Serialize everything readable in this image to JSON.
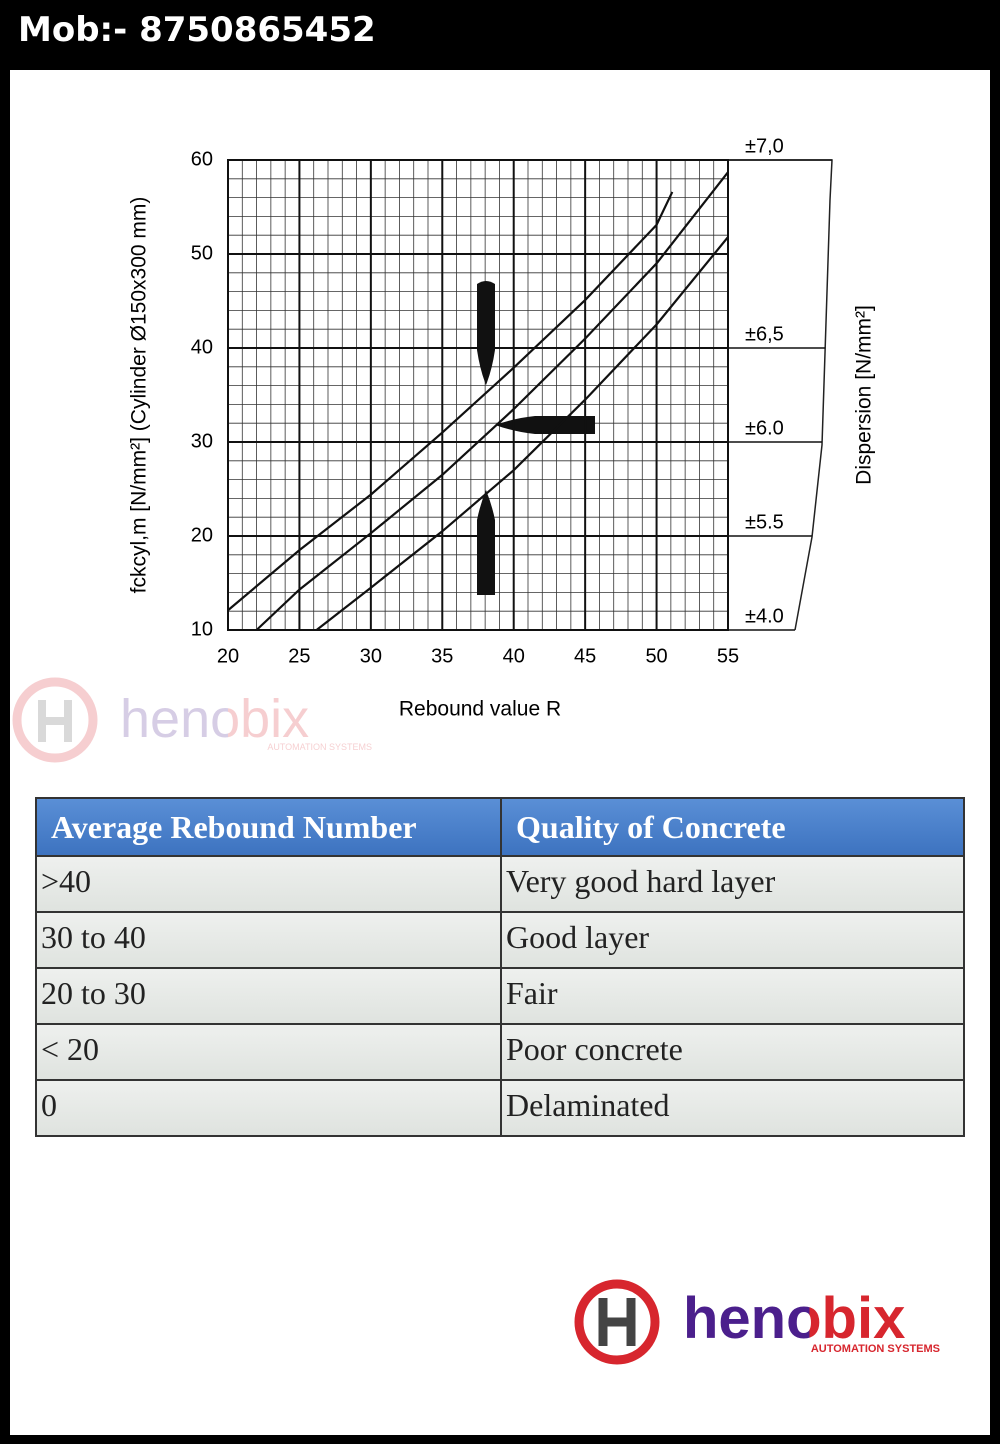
{
  "header": {
    "phone": "Mob:- 8750865452"
  },
  "chart_data": {
    "type": "line",
    "x_label": "Rebound value R",
    "y_label": "fckcyl,m [N/mm²] (Cylinder Ø150x300 mm)",
    "y2_label": "Dispersion [N/mm²]",
    "xlim": [
      20,
      55
    ],
    "xticks": [
      20,
      25,
      30,
      35,
      40,
      45,
      50,
      55
    ],
    "ylim": [
      10,
      60
    ],
    "yticks": [
      10,
      20,
      30,
      40,
      50,
      60
    ],
    "y2lim": [
      10,
      60
    ],
    "y2ticks": [
      {
        "value": 10,
        "label": "±4.0"
      },
      {
        "value": 20,
        "label": "±5.5"
      },
      {
        "value": 30,
        "label": "±6.0"
      },
      {
        "value": 40,
        "label": "±6,5"
      },
      {
        "value": 60,
        "label": "±7,0"
      }
    ],
    "grid": true,
    "series": [
      {
        "color": "#111111",
        "x": [
          20,
          25,
          30,
          35,
          40,
          45,
          50,
          51.1
        ],
        "values": [
          12.1,
          18.5,
          24.4,
          31,
          37.9,
          45.1,
          53.1,
          56.6
        ]
      },
      {
        "color": "#111111",
        "x": [
          22,
          25,
          30,
          35,
          40,
          45,
          50,
          55
        ],
        "values": [
          10,
          14.3,
          20.3,
          26.5,
          33.5,
          41,
          49,
          58.7
        ]
      },
      {
        "color": "#111111",
        "x": [
          26.2,
          30,
          35,
          40,
          45,
          50,
          55
        ],
        "values": [
          10,
          14.5,
          20.5,
          27,
          34.5,
          42.5,
          51.8
        ]
      }
    ]
  },
  "table": {
    "header": [
      "Average Rebound Number",
      "Quality of Concrete"
    ],
    "rows": [
      [
        ">40",
        "Very good hard layer"
      ],
      [
        "30 to 40",
        "Good layer"
      ],
      [
        "20 to 30",
        "Fair"
      ],
      [
        "< 20",
        "Poor concrete"
      ],
      [
        "0",
        "Delaminated"
      ]
    ]
  },
  "logo": {
    "name": "henobix",
    "tagline": "AUTOMATION SYSTEMS"
  }
}
